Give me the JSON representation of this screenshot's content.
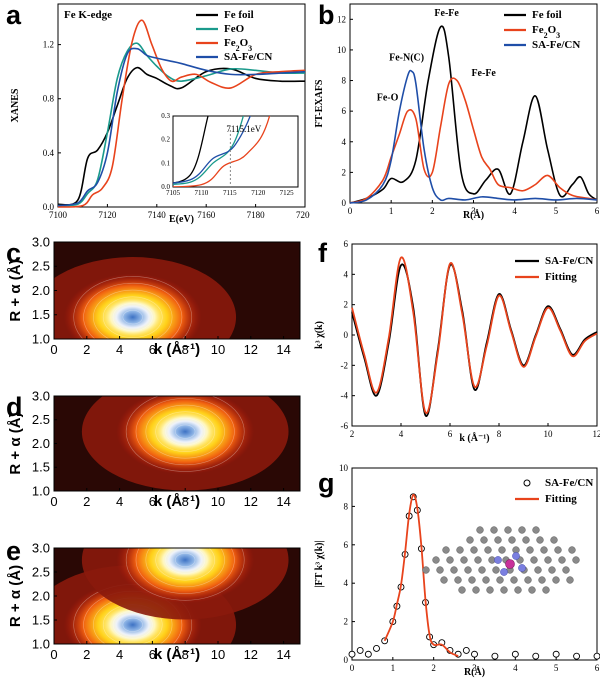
{
  "panel_labels": {
    "a": "a",
    "b": "b",
    "c": "c",
    "d": "d",
    "e": "e",
    "f": "f",
    "g": "g"
  },
  "chart_data": [
    {
      "id": "a",
      "type": "line",
      "title": "Fe K-edge",
      "xlabel": "E(eV)",
      "ylabel": "XANES",
      "xlim": [
        7100,
        7200
      ],
      "ylim": [
        0,
        1.5
      ],
      "xticks": [
        "7100",
        "7120",
        "7140",
        "7160",
        "7180",
        "7200"
      ],
      "yticks": [
        "0.0",
        "0.4",
        "0.8",
        "1.2"
      ],
      "legend": "top-right",
      "series": [
        {
          "name": "Fe foil",
          "color": "#000000",
          "x": [
            7100,
            7108,
            7112,
            7116,
            7120,
            7124,
            7128,
            7132,
            7136,
            7140,
            7145,
            7150,
            7160,
            7170,
            7180,
            7190,
            7200
          ],
          "y": [
            0.02,
            0.05,
            0.36,
            0.42,
            0.55,
            0.75,
            0.95,
            1.03,
            0.98,
            0.95,
            0.9,
            0.88,
            1.0,
            1.02,
            0.95,
            0.93,
            0.93
          ]
        },
        {
          "name": "FeO",
          "color": "#1a9a8c",
          "x": [
            7100,
            7108,
            7112,
            7116,
            7120,
            7124,
            7128,
            7132,
            7136,
            7140,
            7145,
            7150,
            7160,
            7170,
            7180,
            7190,
            7200
          ],
          "y": [
            0.01,
            0.02,
            0.1,
            0.2,
            0.55,
            0.95,
            1.15,
            1.21,
            1.12,
            1.04,
            0.96,
            0.93,
            0.97,
            1.02,
            1.01,
            0.99,
            0.99
          ]
        },
        {
          "name": "Fe2O3",
          "color": "#e8431c",
          "x": [
            7100,
            7110,
            7114,
            7118,
            7122,
            7126,
            7130,
            7134,
            7138,
            7142,
            7146,
            7150,
            7156,
            7162,
            7170,
            7180,
            7190,
            7200
          ],
          "y": [
            0.0,
            0.01,
            0.09,
            0.14,
            0.3,
            0.8,
            1.22,
            1.38,
            1.2,
            1.02,
            0.93,
            0.96,
            0.98,
            0.92,
            0.88,
            0.98,
            1.0,
            1.01
          ]
        },
        {
          "name": "SA-Fe/CN",
          "color": "#1f4ea8",
          "x": [
            7100,
            7108,
            7112,
            7116,
            7120,
            7124,
            7128,
            7132,
            7136,
            7140,
            7145,
            7150,
            7160,
            7170,
            7180,
            7190,
            7200
          ],
          "y": [
            0.01,
            0.03,
            0.12,
            0.18,
            0.4,
            0.85,
            1.13,
            1.17,
            1.12,
            1.1,
            1.08,
            1.06,
            1.01,
            0.98,
            0.98,
            0.99,
            1.0
          ]
        }
      ],
      "inset": {
        "xlim": [
          7105,
          7127
        ],
        "ylim": [
          0,
          0.3
        ],
        "xticks": [
          "7105",
          "7110",
          "7115",
          "7120",
          "7125"
        ],
        "yticks": [
          "0.0",
          "0.1",
          "0.2",
          "0.3"
        ],
        "annotation": "7115.1eV"
      }
    },
    {
      "id": "b",
      "type": "line",
      "xlabel": "R(Å)",
      "ylabel": "FT-EXAFS",
      "xlim": [
        0,
        6
      ],
      "ylim": [
        0,
        13
      ],
      "xticks": [
        "0",
        "1",
        "2",
        "3",
        "4",
        "5",
        "6"
      ],
      "yticks": [
        "0",
        "2",
        "4",
        "6",
        "8",
        "10",
        "12"
      ],
      "legend": "top-right",
      "annotations": [
        "Fe-Fe",
        "Fe-N(C)",
        "Fe-Fe",
        "Fe-O"
      ],
      "series": [
        {
          "name": "Fe foil",
          "color": "#000000",
          "x": [
            0,
            0.4,
            0.8,
            1.0,
            1.3,
            1.6,
            1.9,
            2.2,
            2.4,
            2.7,
            3.0,
            3.3,
            3.6,
            3.9,
            4.2,
            4.5,
            4.8,
            5.1,
            5.4,
            5.6,
            5.8,
            6.0
          ],
          "y": [
            0,
            0.3,
            0.9,
            1.6,
            1.4,
            2.8,
            8.0,
            11.5,
            9.5,
            2.0,
            0.6,
            1.5,
            2.2,
            0.6,
            4.0,
            7.0,
            3.5,
            0.5,
            1.2,
            1.7,
            0.6,
            0.2
          ]
        },
        {
          "name": "Fe2O3",
          "color": "#e8431c",
          "x": [
            0,
            0.4,
            0.8,
            1.0,
            1.2,
            1.4,
            1.6,
            1.8,
            2.0,
            2.2,
            2.4,
            2.6,
            2.8,
            3.0,
            3.2,
            3.4,
            3.6,
            3.9,
            4.2,
            4.5,
            4.8,
            5.1,
            5.4,
            5.8,
            6.0
          ],
          "y": [
            0,
            0.3,
            1.5,
            3.0,
            4.5,
            6.0,
            5.5,
            2.2,
            2.0,
            5.0,
            7.8,
            8.0,
            6.7,
            4.8,
            3.0,
            2.2,
            1.2,
            1.0,
            0.8,
            1.2,
            1.8,
            1.0,
            0.5,
            0.3,
            0.2
          ]
        },
        {
          "name": "SA-Fe/CN",
          "color": "#1f4ea8",
          "x": [
            0,
            0.4,
            0.8,
            1.0,
            1.2,
            1.4,
            1.5,
            1.6,
            1.8,
            2.0,
            2.2,
            2.4,
            2.8,
            3.2,
            3.6,
            4.0,
            4.5,
            5.0,
            5.5,
            6.0
          ],
          "y": [
            0,
            0.2,
            1.2,
            2.8,
            6.0,
            8.3,
            8.6,
            7.8,
            3.5,
            1.0,
            0.2,
            0.3,
            0.2,
            0.4,
            0.3,
            0.2,
            0.3,
            0.2,
            0.3,
            0.2
          ]
        }
      ]
    },
    {
      "id": "c",
      "type": "heatmap",
      "xlabel": "k (Å⁻¹)",
      "ylabel": "R + α (Å)",
      "xlim": [
        0,
        15
      ],
      "ylim": [
        1.0,
        3.0
      ],
      "xticks": [
        "0",
        "2",
        "4",
        "6",
        "8",
        "10",
        "12",
        "14"
      ],
      "yticks": [
        "1.0",
        "1.5",
        "2.0",
        "2.5",
        "3.0"
      ],
      "maxima": [
        {
          "k": 4.8,
          "r": 1.45
        }
      ]
    },
    {
      "id": "d",
      "type": "heatmap",
      "xlabel": "k (Å⁻¹)",
      "ylabel": "R + α (Å)",
      "xlim": [
        0,
        15
      ],
      "ylim": [
        1.0,
        3.0
      ],
      "xticks": [
        "0",
        "2",
        "4",
        "6",
        "8",
        "10",
        "12",
        "14"
      ],
      "yticks": [
        "1.0",
        "1.5",
        "2.0",
        "2.5",
        "3.0"
      ],
      "maxima": [
        {
          "k": 8.0,
          "r": 2.25
        }
      ]
    },
    {
      "id": "e",
      "type": "heatmap",
      "xlabel": "k (Å⁻¹)",
      "ylabel": "R + α (Å)",
      "xlim": [
        0,
        15
      ],
      "ylim": [
        1.0,
        3.0
      ],
      "xticks": [
        "0",
        "2",
        "4",
        "6",
        "8",
        "10",
        "12",
        "14"
      ],
      "yticks": [
        "1.0",
        "1.5",
        "2.0",
        "2.5",
        "3.0"
      ],
      "maxima": [
        {
          "k": 4.8,
          "r": 1.4
        },
        {
          "k": 8.0,
          "r": 2.75
        }
      ]
    },
    {
      "id": "f",
      "type": "line",
      "xlabel": "k (Å⁻¹)",
      "ylabel": "k³ χ(k)",
      "xlim": [
        2,
        12
      ],
      "ylim": [
        -6,
        6
      ],
      "xticks": [
        "2",
        "4",
        "6",
        "8",
        "10",
        "12"
      ],
      "yticks": [
        "-6",
        "-4",
        "-2",
        "0",
        "2",
        "4",
        "6"
      ],
      "legend": "top-right",
      "series": [
        {
          "name": "SA-Fe/CN",
          "color": "#000000",
          "x": [
            2,
            2.5,
            3,
            3.5,
            4,
            4.5,
            5,
            5.5,
            6,
            6.5,
            7,
            7.5,
            8,
            8.5,
            9,
            9.5,
            10,
            10.5,
            11,
            11.5,
            12
          ],
          "y": [
            1.5,
            -1.5,
            -4.0,
            -0.5,
            4.6,
            1.8,
            -5.3,
            -1.0,
            4.6,
            1.6,
            -3.6,
            -0.5,
            2.7,
            0.3,
            -2.0,
            0.0,
            1.9,
            0.4,
            -1.3,
            -0.3,
            0.2
          ]
        },
        {
          "name": "Fitting",
          "color": "#e8431c",
          "x": [
            2,
            2.5,
            3,
            3.5,
            4,
            4.5,
            5,
            5.5,
            6,
            6.5,
            7,
            7.5,
            8,
            8.5,
            9,
            9.5,
            10,
            10.5,
            11,
            11.5,
            12
          ],
          "y": [
            1.8,
            -1.3,
            -3.8,
            -0.2,
            5.1,
            1.5,
            -5.1,
            -1.2,
            4.7,
            1.4,
            -3.4,
            -0.7,
            2.6,
            0.2,
            -2.1,
            -0.1,
            1.8,
            0.3,
            -1.4,
            -0.4,
            0.1
          ]
        }
      ]
    },
    {
      "id": "g",
      "type": "line",
      "xlabel": "R(Å)",
      "ylabel": "|FT k³ χ(k)|",
      "xlim": [
        0,
        6
      ],
      "ylim": [
        0,
        10
      ],
      "xticks": [
        "0",
        "1",
        "2",
        "3",
        "4",
        "5",
        "6"
      ],
      "yticks": [
        "0",
        "2",
        "4",
        "6",
        "8",
        "10"
      ],
      "legend": "top-right",
      "series": [
        {
          "name": "SA-Fe/CN",
          "marker": "circle",
          "color": "#000000",
          "x": [
            0,
            0.2,
            0.4,
            0.6,
            0.8,
            1.0,
            1.1,
            1.2,
            1.3,
            1.4,
            1.5,
            1.6,
            1.7,
            1.8,
            1.9,
            2.0,
            2.2,
            2.4,
            2.6,
            2.8,
            3.0,
            3.5,
            4.0,
            4.5,
            5.0,
            5.5,
            6.0
          ],
          "y": [
            0.3,
            0.5,
            0.3,
            0.6,
            1.0,
            2.0,
            2.8,
            3.8,
            5.5,
            7.5,
            8.5,
            7.8,
            5.8,
            3.0,
            1.2,
            0.8,
            0.9,
            0.5,
            0.3,
            0.5,
            0.3,
            0.2,
            0.3,
            0.2,
            0.3,
            0.2,
            0.2
          ]
        },
        {
          "name": "Fitting",
          "color": "#e8431c",
          "x": [
            0.8,
            1.0,
            1.1,
            1.2,
            1.3,
            1.4,
            1.5,
            1.6,
            1.7,
            1.8,
            1.9,
            2.0,
            2.2,
            2.4,
            2.6
          ],
          "y": [
            1.0,
            2.0,
            2.9,
            3.9,
            5.6,
            7.6,
            8.6,
            7.9,
            5.9,
            3.1,
            1.3,
            0.8,
            0.8,
            0.4,
            0.2
          ]
        }
      ]
    }
  ]
}
